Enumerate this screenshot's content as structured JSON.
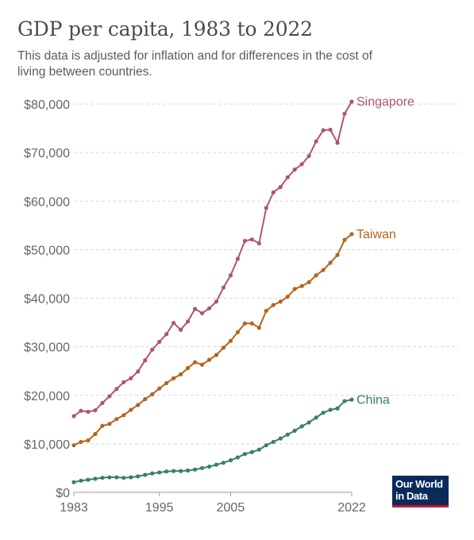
{
  "header": {
    "title": "GDP per capita, 1983 to 2022",
    "subtitle": "This data is adjusted for inflation and for differences in the cost of living between countries."
  },
  "logo": {
    "line1": "Our World",
    "line2": "in Data"
  },
  "chart_data": {
    "type": "line",
    "title": "GDP per capita, 1983 to 2022",
    "subtitle": "This data is adjusted for inflation and for differences in the cost of living between countries.",
    "xlabel": "",
    "ylabel": "",
    "xlim": [
      1983,
      2022
    ],
    "ylim": [
      0,
      80000
    ],
    "x_ticks": [
      1983,
      1995,
      2005,
      2022
    ],
    "x_tick_labels": [
      "1983",
      "1995",
      "2005",
      "2022"
    ],
    "y_ticks": [
      0,
      10000,
      20000,
      30000,
      40000,
      50000,
      60000,
      70000,
      80000
    ],
    "y_tick_labels": [
      "$0",
      "$10,000",
      "$20,000",
      "$30,000",
      "$40,000",
      "$50,000",
      "$60,000",
      "$70,000",
      "$80,000"
    ],
    "grid": "horizontal dashed",
    "legend": "labels at line ends (right)",
    "x": [
      1983,
      1984,
      1985,
      1986,
      1987,
      1988,
      1989,
      1990,
      1991,
      1992,
      1993,
      1994,
      1995,
      1996,
      1997,
      1998,
      1999,
      2000,
      2001,
      2002,
      2003,
      2004,
      2005,
      2006,
      2007,
      2008,
      2009,
      2010,
      2011,
      2012,
      2013,
      2014,
      2015,
      2016,
      2017,
      2018,
      2019,
      2020,
      2021,
      2022
    ],
    "series": [
      {
        "name": "Singapore",
        "color": "#b05668",
        "values": [
          15700,
          16800,
          16600,
          16900,
          18400,
          19800,
          21300,
          22700,
          23500,
          24900,
          27200,
          29400,
          31000,
          32600,
          34900,
          33500,
          35200,
          37800,
          36900,
          37900,
          39300,
          42200,
          44700,
          48100,
          51800,
          52100,
          51300,
          58600,
          61800,
          62900,
          64900,
          66500,
          67600,
          69300,
          72300,
          74600,
          74700,
          72000,
          78000,
          80500
        ],
        "label_value": "Singapore"
      },
      {
        "name": "Taiwan",
        "color": "#b5651d",
        "values": [
          9700,
          10400,
          10700,
          12000,
          13700,
          14100,
          15100,
          15900,
          17000,
          18000,
          19200,
          20200,
          21400,
          22500,
          23500,
          24300,
          25600,
          26800,
          26300,
          27300,
          28300,
          29800,
          31200,
          33000,
          34800,
          34800,
          33900,
          37400,
          38600,
          39300,
          40300,
          41900,
          42500,
          43300,
          44700,
          45800,
          47300,
          48900,
          52000,
          53200
        ],
        "label_value": "Taiwan"
      },
      {
        "name": "China",
        "color": "#3a7f68",
        "values": [
          2100,
          2400,
          2600,
          2800,
          3000,
          3100,
          3100,
          3000,
          3100,
          3300,
          3600,
          3900,
          4100,
          4300,
          4400,
          4400,
          4500,
          4700,
          5000,
          5300,
          5700,
          6100,
          6600,
          7200,
          7900,
          8300,
          8800,
          9700,
          10400,
          11100,
          11900,
          12700,
          13600,
          14400,
          15400,
          16400,
          17000,
          17300,
          18800,
          19100
        ],
        "label_value": "China"
      }
    ]
  }
}
